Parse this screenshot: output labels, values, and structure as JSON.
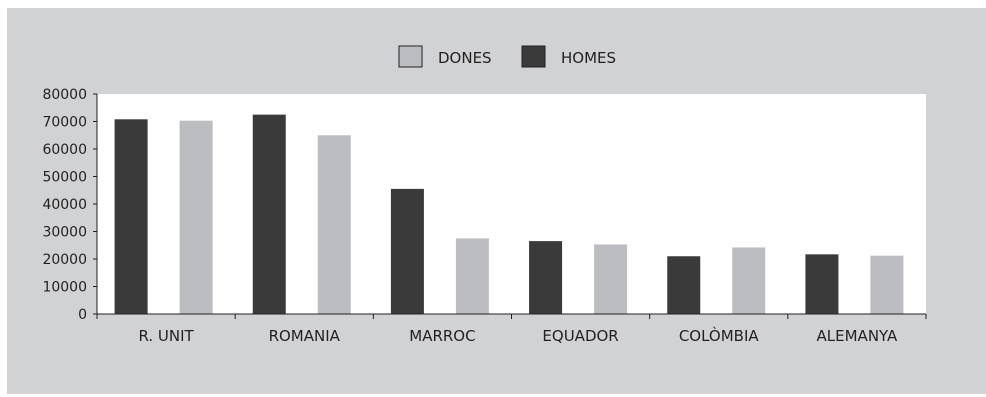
{
  "chart_data": {
    "type": "bar",
    "categories": [
      "R. UNIT",
      "ROMANIA",
      "MARROC",
      "EQUADOR",
      "COLÒMBIA",
      "ALEMANYA"
    ],
    "series": [
      {
        "name": "HOMES",
        "values": [
          70800,
          72500,
          45500,
          26500,
          21000,
          21700
        ],
        "color": "#3a3a3b"
      },
      {
        "name": "DONES",
        "values": [
          70300,
          65000,
          27500,
          25300,
          24200,
          21200
        ],
        "color": "#bcbdc0"
      }
    ],
    "legend": {
      "position": "top-center",
      "order": [
        "DONES",
        "HOMES"
      ]
    },
    "ylim": [
      0,
      80000
    ],
    "yticks": [
      0,
      10000,
      20000,
      30000,
      40000,
      50000,
      60000,
      70000,
      80000
    ],
    "grid": false,
    "title": "",
    "xlabel": "",
    "ylabel": ""
  }
}
